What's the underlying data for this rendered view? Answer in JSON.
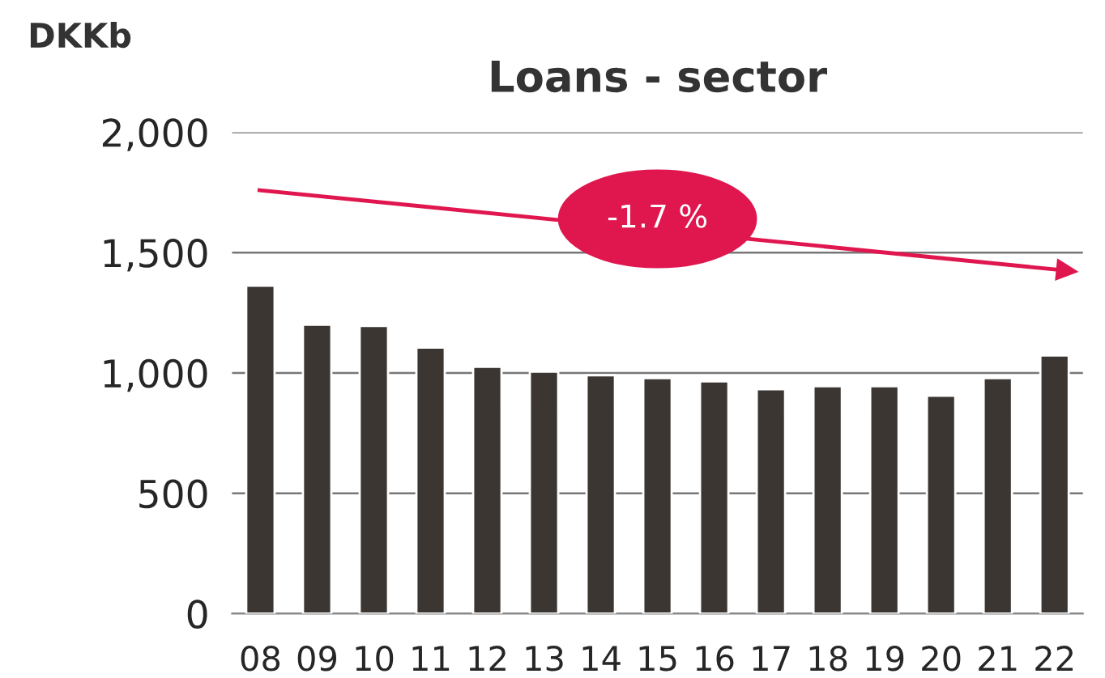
{
  "chart_data": {
    "type": "bar",
    "title": "Loans - sector",
    "ylabel": "DKKb",
    "categories": [
      "08",
      "09",
      "10",
      "11",
      "12",
      "13",
      "14",
      "15",
      "16",
      "17",
      "18",
      "19",
      "20",
      "21",
      "22"
    ],
    "color": "#3b3632",
    "values": [
      1362,
      1200,
      1195,
      1105,
      1025,
      1005,
      990,
      978,
      965,
      932,
      945,
      945,
      905,
      978,
      1072
    ],
    "ylim": [
      0,
      2000
    ],
    "yticks": [
      0,
      500,
      {
        "value": 1000,
        "label": "1,000"
      },
      {
        "value": 1500,
        "label": "1,500"
      },
      {
        "value": 2000,
        "label": "2,000"
      }
    ],
    "grid": "y",
    "annotations": [
      "-1.7 %"
    ]
  }
}
